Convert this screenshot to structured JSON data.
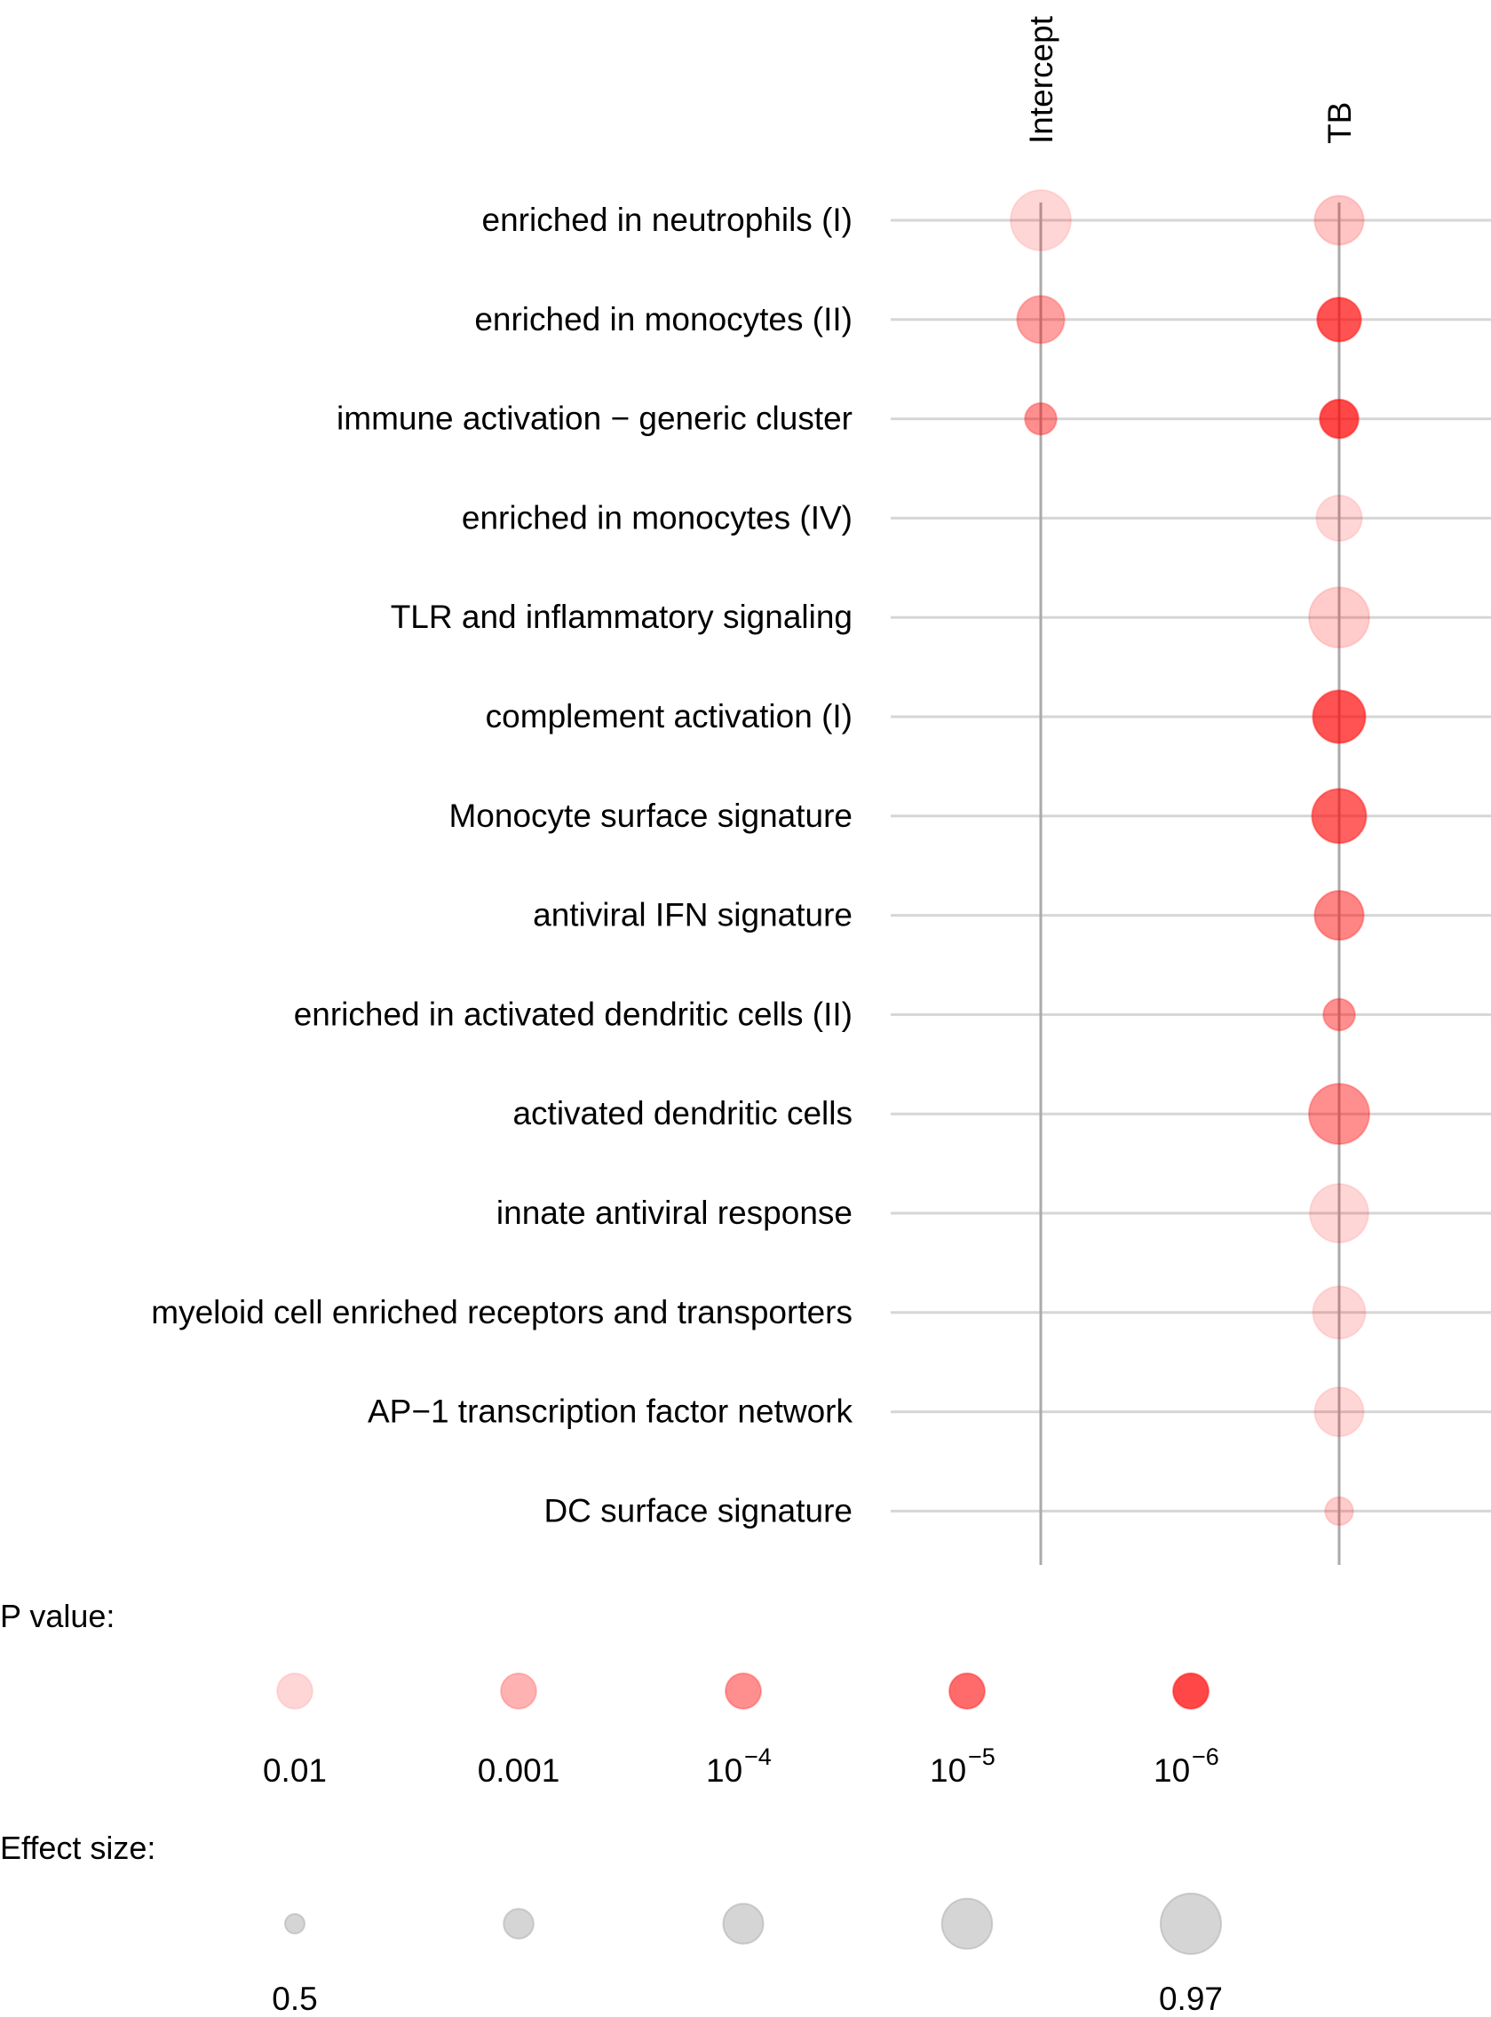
{
  "chart_data": {
    "type": "scatter",
    "title": "",
    "columns": [
      "Intercept",
      "TB"
    ],
    "rows": [
      "enriched in neutrophils (I)",
      "enriched in monocytes (II)",
      "immune activation − generic cluster",
      "enriched in monocytes (IV)",
      "TLR and inflammatory signaling",
      "complement activation (I)",
      "Monocyte surface signature",
      "antiviral IFN signature",
      "enriched in activated dendritic cells (II)",
      "activated dendritic cells",
      "innate antiviral response",
      "myeloid cell enriched receptors and transporters",
      "AP−1 transcription factor network",
      "DC surface signature"
    ],
    "points": [
      {
        "row": 0,
        "col": 0,
        "effect_size": 0.97,
        "p_value": 0.01
      },
      {
        "row": 0,
        "col": 1,
        "effect_size": 0.84,
        "p_value": 0.003
      },
      {
        "row": 1,
        "col": 0,
        "effect_size": 0.82,
        "p_value": 0.0003
      },
      {
        "row": 1,
        "col": 1,
        "effect_size": 0.78,
        "p_value": 2e-06
      },
      {
        "row": 2,
        "col": 0,
        "effect_size": 0.64,
        "p_value": 0.0001
      },
      {
        "row": 2,
        "col": 1,
        "effect_size": 0.72,
        "p_value": 1e-06
      },
      {
        "row": 3,
        "col": 1,
        "effect_size": 0.8,
        "p_value": 0.01
      },
      {
        "row": 4,
        "col": 1,
        "effect_size": 0.97,
        "p_value": 0.005
      },
      {
        "row": 5,
        "col": 1,
        "effect_size": 0.88,
        "p_value": 2e-06
      },
      {
        "row": 6,
        "col": 1,
        "effect_size": 0.9,
        "p_value": 5e-06
      },
      {
        "row": 7,
        "col": 1,
        "effect_size": 0.84,
        "p_value": 5e-05
      },
      {
        "row": 8,
        "col": 1,
        "effect_size": 0.64,
        "p_value": 0.0001
      },
      {
        "row": 9,
        "col": 1,
        "effect_size": 0.97,
        "p_value": 0.0001
      },
      {
        "row": 10,
        "col": 1,
        "effect_size": 0.95,
        "p_value": 0.01
      },
      {
        "row": 11,
        "col": 1,
        "effect_size": 0.88,
        "p_value": 0.01
      },
      {
        "row": 12,
        "col": 1,
        "effect_size": 0.84,
        "p_value": 0.01
      },
      {
        "row": 13,
        "col": 1,
        "effect_size": 0.6,
        "p_value": 0.005
      }
    ],
    "legend_p": {
      "title": "P value:",
      "items": [
        {
          "p": 0.01,
          "label": "0.01",
          "base": "",
          "exp": ""
        },
        {
          "p": 0.001,
          "label": "0.001",
          "base": "",
          "exp": ""
        },
        {
          "p": 0.0001,
          "label": "",
          "base": "10",
          "exp": "−4"
        },
        {
          "p": 1e-05,
          "label": "",
          "base": "10",
          "exp": "−5"
        },
        {
          "p": 1e-06,
          "label": "",
          "base": "10",
          "exp": "−6"
        }
      ]
    },
    "legend_effect": {
      "title": "Effect size:",
      "sizes": [
        0.5,
        0.6175,
        0.735,
        0.8525,
        0.97
      ],
      "labels": [
        "0.5",
        "",
        "",
        "",
        "0.97"
      ]
    },
    "colors": {
      "point": "#ff0000",
      "gray": "#b3b3b3",
      "grid": "#d6d6d6",
      "column_line": "#aaaaaa"
    },
    "grid": true,
    "legend_position": "bottom"
  }
}
